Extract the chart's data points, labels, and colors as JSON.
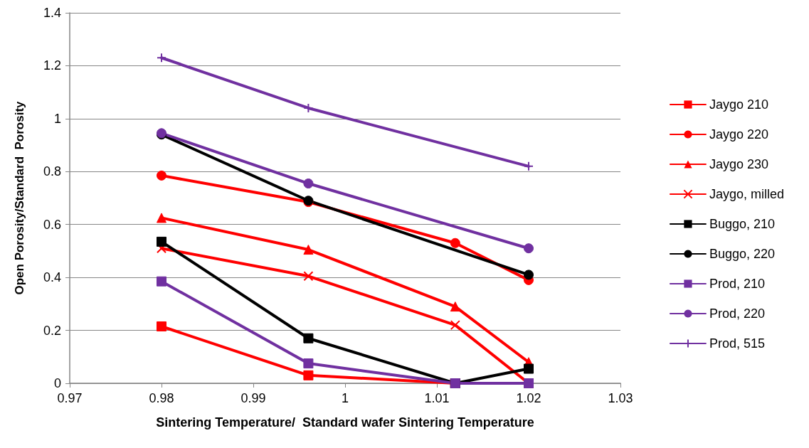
{
  "chart_data": {
    "type": "line",
    "xlabel": "Sintering Temperature/  Standard wafer Sintering Temperature",
    "ylabel": "Open Porosity/Standard  Porosity",
    "x": [
      0.98,
      0.996,
      1.012,
      1.02
    ],
    "series": [
      {
        "name": "Jaygo 210",
        "color": "#ff0000",
        "marker": "square",
        "values": [
          0.215,
          0.03,
          0,
          0
        ]
      },
      {
        "name": "Jaygo 220",
        "color": "#ff0000",
        "marker": "circle",
        "values": [
          0.785,
          0.685,
          0.53,
          0.39
        ]
      },
      {
        "name": "Jaygo 230",
        "color": "#ff0000",
        "marker": "triangle",
        "values": [
          0.625,
          0.505,
          0.29,
          0.08
        ]
      },
      {
        "name": "Jaygo, milled",
        "color": "#ff0000",
        "marker": "x",
        "values": [
          0.51,
          0.405,
          0.22,
          0
        ]
      },
      {
        "name": "Buggo, 210",
        "color": "#000000",
        "marker": "square",
        "values": [
          0.535,
          0.17,
          0,
          0.055
        ]
      },
      {
        "name": "Buggo, 220",
        "color": "#000000",
        "marker": "circle",
        "values": [
          0.94,
          0.69,
          null,
          0.41
        ]
      },
      {
        "name": "Prod, 210",
        "color": "#7030a0",
        "marker": "square",
        "values": [
          0.385,
          0.075,
          0,
          0
        ]
      },
      {
        "name": "Prod, 220",
        "color": "#7030a0",
        "marker": "circle",
        "values": [
          0.945,
          0.755,
          null,
          0.51
        ]
      },
      {
        "name": "Prod, 515",
        "color": "#7030a0",
        "marker": "cross",
        "values": [
          1.23,
          1.04,
          null,
          0.82
        ]
      }
    ],
    "xlim": [
      0.97,
      1.03
    ],
    "xticks": [
      0.97,
      0.98,
      0.99,
      1,
      1.01,
      1.02,
      1.03
    ],
    "ylim": [
      0,
      1.4
    ],
    "yticks": [
      0,
      0.2,
      0.4,
      0.6,
      0.8,
      1,
      1.2,
      1.4
    ],
    "grid": "y",
    "legend": "right",
    "line_style": "solid"
  }
}
